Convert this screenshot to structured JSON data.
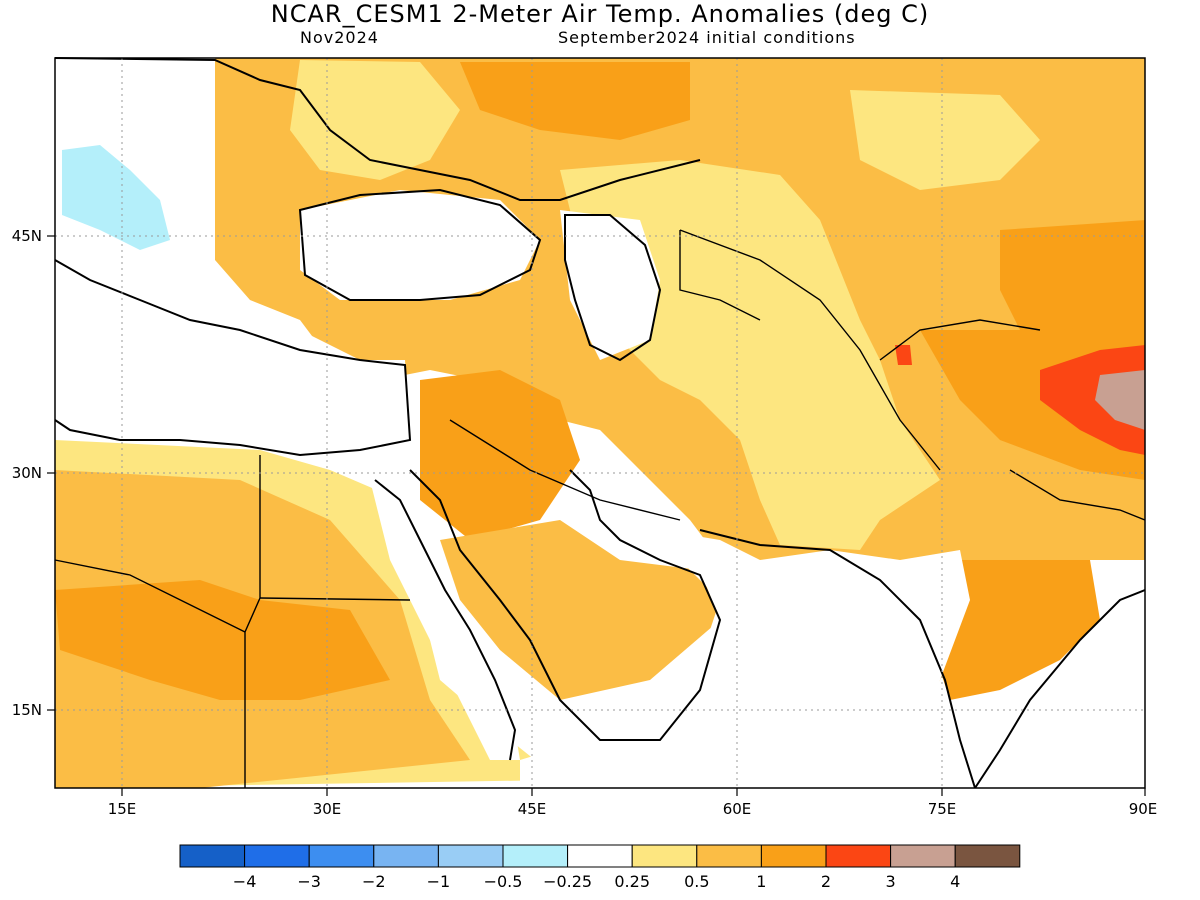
{
  "header": {
    "title": "NCAR_CESM1 2-Meter Air Temp. Anomalies (deg C)",
    "valid_month": "Nov2024",
    "init": "September2024 initial conditions"
  },
  "axes": {
    "lon_ticks": [
      "15E",
      "30E",
      "45E",
      "60E",
      "75E",
      "90E"
    ],
    "lat_ticks": [
      "45N",
      "30N",
      "15N"
    ]
  },
  "colorbar": {
    "colors": [
      "#1560c8",
      "#1f6ee8",
      "#3d8ef0",
      "#78b4f2",
      "#99cdf5",
      "#b4effa",
      "#ffffff",
      "#fde680",
      "#fbbd45",
      "#f9a018",
      "#fb4614",
      "#c8a092",
      "#7a5540"
    ],
    "labels": [
      "-4",
      "-3",
      "-2",
      "-1",
      "-0.5",
      "-0.25",
      "0.25",
      "0.5",
      "1",
      "2",
      "3",
      "4"
    ]
  },
  "legend_colors": {
    "light_yellow": "#fde680",
    "light_orange": "#fbbd45",
    "orange": "#f9a018",
    "red": "#fb4614",
    "pink_brown": "#c8a092",
    "light_blue": "#b4effa",
    "white": "#ffffff"
  }
}
